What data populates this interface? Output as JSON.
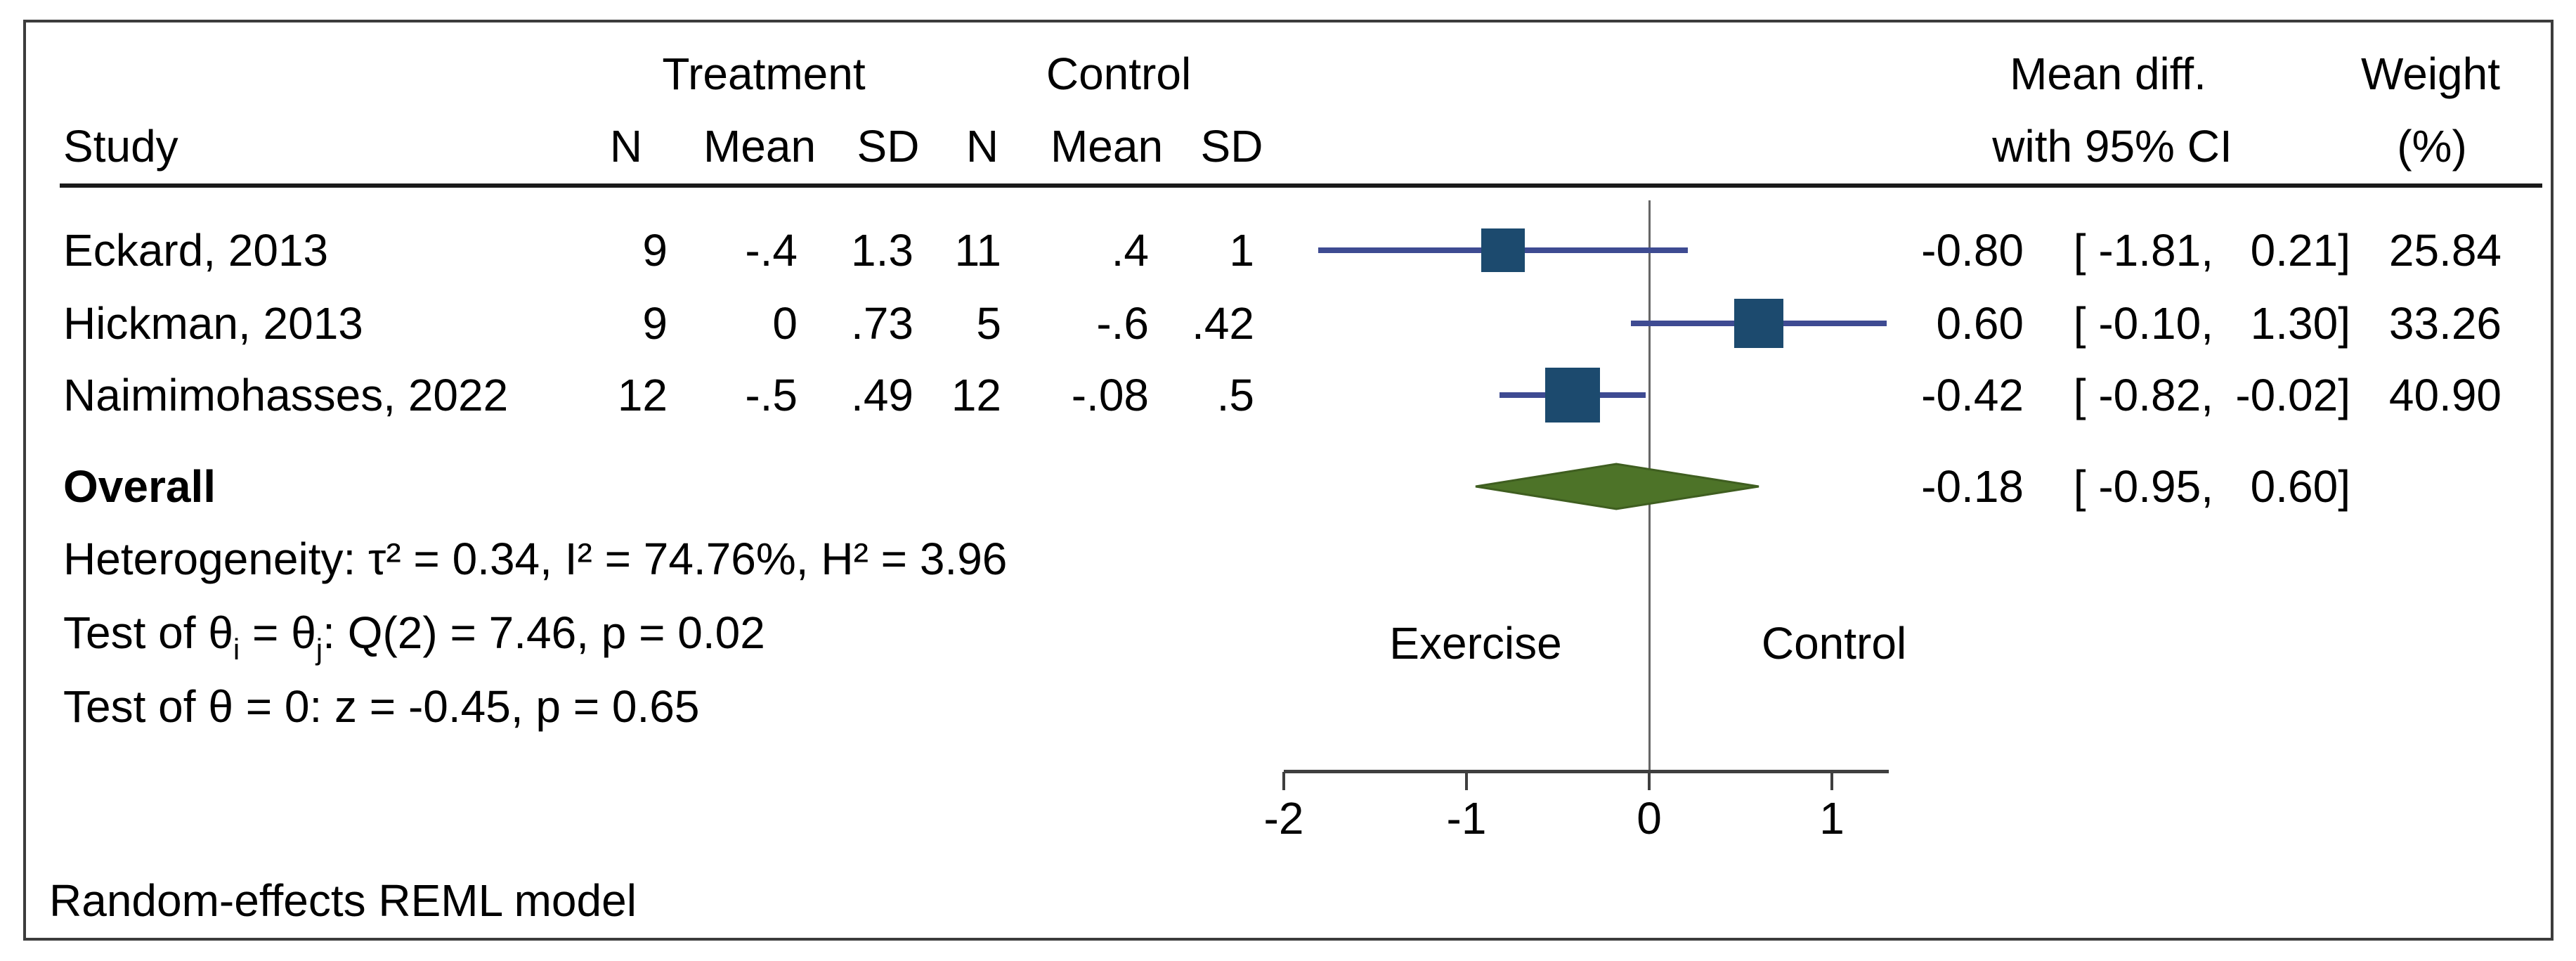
{
  "header": {
    "treatment_group": "Treatment",
    "control_group": "Control",
    "study": "Study",
    "n1": "N",
    "mean1": "Mean",
    "sd1": "SD",
    "n2": "N",
    "mean2": "Mean",
    "sd2": "SD",
    "effect_line1": "Mean diff.",
    "effect_line2": "with 95% CI",
    "weight_line1": "Weight",
    "weight_line2": "(%)"
  },
  "rows": [
    {
      "study": "Eckard, 2013",
      "t_n": "9",
      "t_mean": "-.4",
      "t_sd": "1.3",
      "c_n": "11",
      "c_mean": ".4",
      "c_sd": "1",
      "est_text": "-0.80",
      "lo_text": "[ -1.81,",
      "hi_text": "0.21]",
      "weight_text": "25.84"
    },
    {
      "study": "Hickman, 2013",
      "t_n": "9",
      "t_mean": "0",
      "t_sd": ".73",
      "c_n": "5",
      "c_mean": "-.6",
      "c_sd": ".42",
      "est_text": "0.60",
      "lo_text": "[ -0.10,",
      "hi_text": "1.30]",
      "weight_text": "33.26"
    },
    {
      "study": "Naimimohasses, 2022",
      "t_n": "12",
      "t_mean": "-.5",
      "t_sd": ".49",
      "c_n": "12",
      "c_mean": "-.08",
      "c_sd": ".5",
      "est_text": "-0.42",
      "lo_text": "[ -0.82,",
      "hi_text": "-0.02]",
      "weight_text": "40.90"
    }
  ],
  "overall": {
    "label": "Overall",
    "est_text": "-0.18",
    "lo_text": "[ -0.95,",
    "hi_text": "0.60]"
  },
  "stats": {
    "heterogeneity": "Heterogeneity: τ² = 0.34, I² = 74.76%, H² = 3.96",
    "test_q": {
      "pre": "Test of θ",
      "sub_i": "i",
      "mid": " = θ",
      "sub_j": "j",
      "post": ": Q(2) = 7.46, p = 0.02"
    },
    "test_z": "Test of θ = 0: z = -0.45, p = 0.65"
  },
  "axis": {
    "left_label": "Exercise",
    "right_label": "Control"
  },
  "footer": {
    "model": "Random-effects REML model"
  },
  "colors": {
    "square": "#1c4a6e",
    "ci_line": "#3e4b92",
    "diamond": "#4d7328",
    "diamond_edge": "#3f5e20",
    "axis": "#3f3f3f",
    "zero_line": "#666666",
    "frame": "#3c3c3c",
    "text": "#000000"
  },
  "chart_data": {
    "type": "forest",
    "title": "",
    "xlabel_left": "Exercise",
    "xlabel_right": "Control",
    "effect_measure": "Mean diff. with 95% CI",
    "x_tick_values": [
      -2,
      -1,
      0,
      1
    ],
    "x_tick_labels": [
      "-2",
      "-1",
      "0",
      "1"
    ],
    "x_axis_span": [
      -2.0,
      1.31
    ],
    "zero_line": 0,
    "studies": [
      {
        "study": "Eckard, 2013",
        "treatment": {
          "n": 9,
          "mean": -0.4,
          "sd": 1.3
        },
        "control": {
          "n": 11,
          "mean": 0.4,
          "sd": 1.0
        },
        "est": -0.8,
        "lo": -1.81,
        "hi": 0.21,
        "weight": 25.84
      },
      {
        "study": "Hickman, 2013",
        "treatment": {
          "n": 9,
          "mean": 0.0,
          "sd": 0.73
        },
        "control": {
          "n": 5,
          "mean": -0.6,
          "sd": 0.42
        },
        "est": 0.6,
        "lo": -0.1,
        "hi": 1.3,
        "weight": 33.26
      },
      {
        "study": "Naimimohasses, 2022",
        "treatment": {
          "n": 12,
          "mean": -0.5,
          "sd": 0.49
        },
        "control": {
          "n": 12,
          "mean": -0.08,
          "sd": 0.5
        },
        "est": -0.42,
        "lo": -0.82,
        "hi": -0.02,
        "weight": 40.9
      }
    ],
    "overall": {
      "est": -0.18,
      "lo": -0.95,
      "hi": 0.6
    },
    "heterogeneity": {
      "tau2": 0.34,
      "I2_pct": 74.76,
      "H2": 3.96
    },
    "test_homogeneity": {
      "Q_df": 2,
      "Q": 7.46,
      "p": 0.02
    },
    "test_overall": {
      "z": -0.45,
      "p": 0.65
    },
    "model": "Random-effects REML model"
  }
}
